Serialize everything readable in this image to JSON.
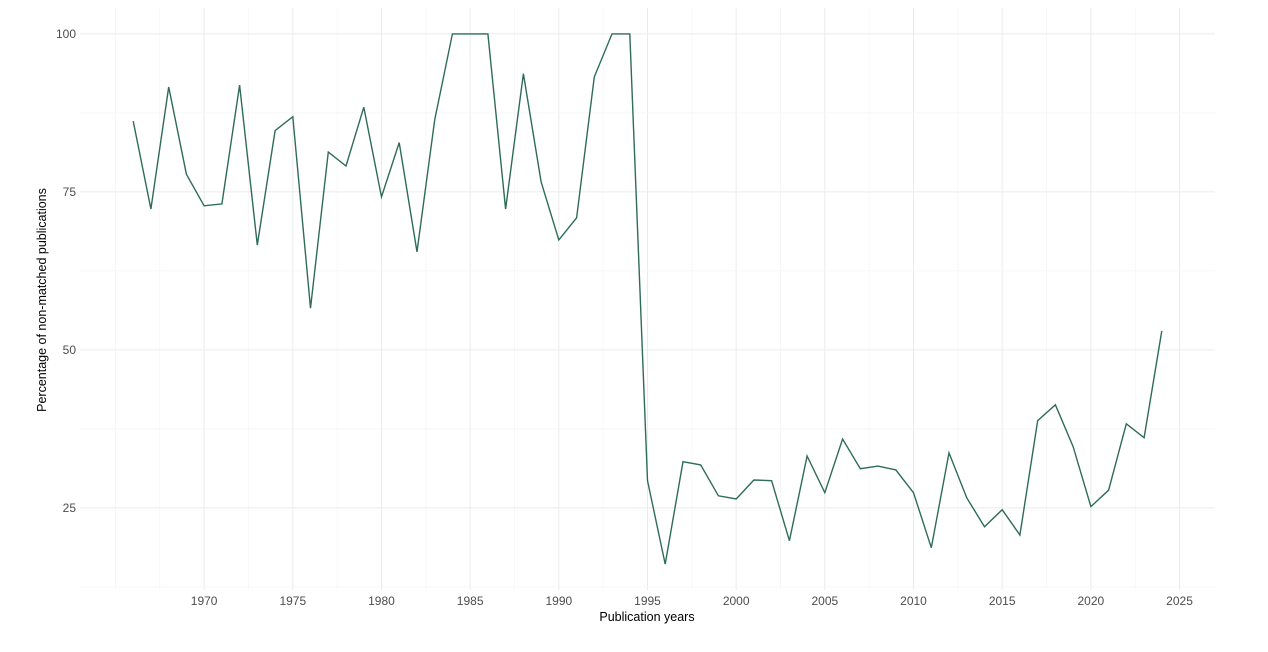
{
  "chart_data": {
    "type": "line",
    "title": "",
    "xlabel": "Publication years",
    "ylabel": "Percentage of non-matched publications",
    "xlim": [
      1963,
      2027
    ],
    "ylim": [
      12,
      104.1
    ],
    "x_ticks": [
      1970,
      1975,
      1980,
      1985,
      1990,
      1995,
      2000,
      2005,
      2010,
      2015,
      2020,
      2025
    ],
    "y_ticks": [
      25,
      50,
      75,
      100
    ],
    "grid": true,
    "line_color": "#2f6b5a",
    "series": [
      {
        "name": "Percentage of non-matched publications",
        "x": [
          1966,
          1967,
          1968,
          1969,
          1970,
          1971,
          1972,
          1973,
          1974,
          1975,
          1976,
          1977,
          1978,
          1979,
          1980,
          1981,
          1982,
          1983,
          1984,
          1985,
          1986,
          1987,
          1988,
          1989,
          1990,
          1991,
          1992,
          1993,
          1994,
          1995,
          1996,
          1997,
          1998,
          1999,
          2000,
          2001,
          2002,
          2003,
          2004,
          2005,
          2006,
          2007,
          2008,
          2009,
          2010,
          2011,
          2012,
          2013,
          2014,
          2015,
          2016,
          2017,
          2018,
          2019,
          2020,
          2021,
          2022,
          2023,
          2024
        ],
        "values": [
          86.2,
          72.3,
          91.6,
          77.8,
          72.8,
          73.1,
          91.9,
          66.6,
          84.7,
          86.9,
          56.6,
          81.3,
          79.1,
          88.4,
          74.2,
          82.8,
          65.5,
          86.4,
          100,
          100,
          100,
          72.3,
          93.7,
          76.6,
          67.4,
          70.9,
          93.2,
          100,
          100,
          29.3,
          16.1,
          32.3,
          31.8,
          26.9,
          26.4,
          29.4,
          29.3,
          19.8,
          33.2,
          27.4,
          35.9,
          31.2,
          31.6,
          31.0,
          27.4,
          18.7,
          33.7,
          26.6,
          22.0,
          24.7,
          20.7,
          38.8,
          41.3,
          34.7,
          25.2,
          27.8,
          38.3,
          36.1,
          53.0
        ]
      }
    ]
  }
}
